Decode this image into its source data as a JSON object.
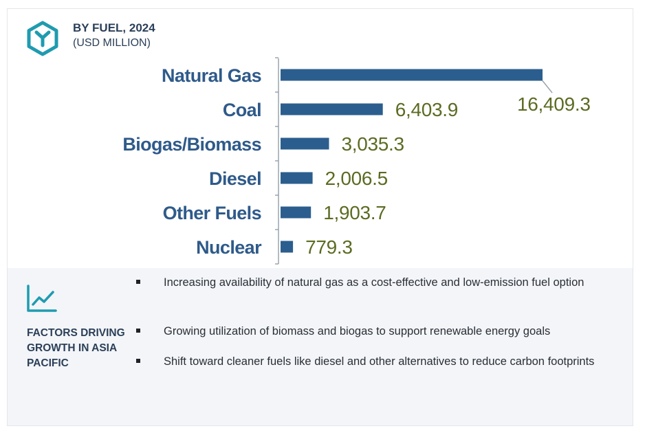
{
  "header": {
    "title": "BY FUEL, 2024",
    "subtitle": "(USD MILLION)",
    "logo_icon": "cube-y-icon"
  },
  "colors": {
    "bar": "#2b5e8e",
    "category_label": "#2f5a8a",
    "value_label": "#5b6b22",
    "heading": "#2b3f58",
    "panel_bg": "#f3f5f8",
    "logo": "#1f9bb0"
  },
  "chart_data": {
    "type": "bar",
    "orientation": "horizontal",
    "title": "BY FUEL, 2024",
    "subtitle": "(USD MILLION)",
    "categories": [
      "Natural Gas",
      "Coal",
      "Biogas/Biomass",
      "Diesel",
      "Other Fuels",
      "Nuclear"
    ],
    "values": [
      16409.3,
      6403.9,
      3035.3,
      2006.5,
      1903.7,
      779.3
    ],
    "value_labels": [
      "16,409.3",
      "6,403.9",
      "3,035.3",
      "2,006.5",
      "1,903.7",
      "779.3"
    ],
    "xlim": [
      0,
      16409.3
    ],
    "grid": false,
    "legend": "none"
  },
  "factors": {
    "icon": "trend-line-icon",
    "title": "FACTORS DRIVING GROWTH IN ASIA PACIFIC",
    "bullets": [
      "Increasing availability of natural gas as a cost-effective and low-emission fuel option",
      "Growing utilization of biomass and biogas to support renewable energy goals",
      "Shift toward cleaner fuels like diesel and other alternatives to reduce carbon footprints"
    ]
  }
}
